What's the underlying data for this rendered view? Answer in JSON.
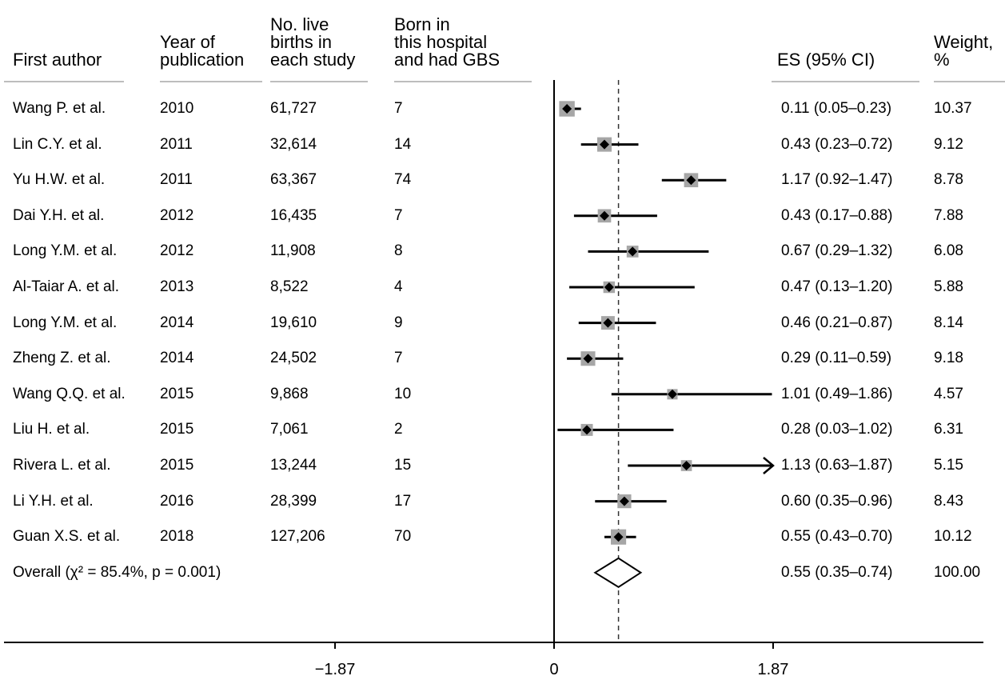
{
  "chart_data": {
    "type": "forest",
    "columns": {
      "author": "First author",
      "year": "Year of\npublication",
      "births": "No. live\nbirths in\neach study",
      "gbs": "Born in\nthis hospital\nand had GBS",
      "es": "ES (95% CI)",
      "weight": "Weight,\n%"
    },
    "studies": [
      {
        "author": "Wang P. et al.",
        "year": "2010",
        "births": "61,727",
        "gbs": "7",
        "es": 0.11,
        "lo": 0.05,
        "hi": 0.23,
        "es_text": "0.11 (0.05–0.23)",
        "weight": "10.37"
      },
      {
        "author": "Lin C.Y. et al.",
        "year": "2011",
        "births": "32,614",
        "gbs": "14",
        "es": 0.43,
        "lo": 0.23,
        "hi": 0.72,
        "es_text": "0.43 (0.23–0.72)",
        "weight": "9.12"
      },
      {
        "author": "Yu H.W. et al.",
        "year": "2011",
        "births": "63,367",
        "gbs": "74",
        "es": 1.17,
        "lo": 0.92,
        "hi": 1.47,
        "es_text": "1.17 (0.92–1.47)",
        "weight": "8.78"
      },
      {
        "author": "Dai Y.H. et al.",
        "year": "2012",
        "births": "16,435",
        "gbs": "7",
        "es": 0.43,
        "lo": 0.17,
        "hi": 0.88,
        "es_text": "0.43 (0.17–0.88)",
        "weight": "7.88"
      },
      {
        "author": "Long Y.M. et al.",
        "year": "2012",
        "births": "11,908",
        "gbs": "8",
        "es": 0.67,
        "lo": 0.29,
        "hi": 1.32,
        "es_text": "0.67 (0.29–1.32)",
        "weight": "6.08"
      },
      {
        "author": "Al-Taiar A. et al.",
        "year": "2013",
        "births": "8,522",
        "gbs": "4",
        "es": 0.47,
        "lo": 0.13,
        "hi": 1.2,
        "es_text": "0.47 (0.13–1.20)",
        "weight": "5.88"
      },
      {
        "author": "Long Y.M. et al.",
        "year": "2014",
        "births": "19,610",
        "gbs": "9",
        "es": 0.46,
        "lo": 0.21,
        "hi": 0.87,
        "es_text": "0.46 (0.21–0.87)",
        "weight": "8.14"
      },
      {
        "author": "Zheng Z. et al.",
        "year": "2014",
        "births": "24,502",
        "gbs": "7",
        "es": 0.29,
        "lo": 0.11,
        "hi": 0.59,
        "es_text": "0.29 (0.11–0.59)",
        "weight": "9.18"
      },
      {
        "author": "Wang Q.Q. et al.",
        "year": "2015",
        "births": "9,868",
        "gbs": "10",
        "es": 1.01,
        "lo": 0.49,
        "hi": 1.86,
        "es_text": "1.01 (0.49–1.86)",
        "weight": "4.57"
      },
      {
        "author": "Liu H. et al.",
        "year": "2015",
        "births": "7,061",
        "gbs": "2",
        "es": 0.28,
        "lo": 0.03,
        "hi": 1.02,
        "es_text": "0.28 (0.03–1.02)",
        "weight": "6.31"
      },
      {
        "author": "Rivera L. et al.",
        "year": "2015",
        "births": "13,244",
        "gbs": "15",
        "es": 1.13,
        "lo": 0.63,
        "hi": 1.87,
        "es_text": "1.13 (0.63–1.87)",
        "weight": "5.15"
      },
      {
        "author": "Li Y.H. et al.",
        "year": "2016",
        "births": "28,399",
        "gbs": "17",
        "es": 0.6,
        "lo": 0.35,
        "hi": 0.96,
        "es_text": "0.60 (0.35–0.96)",
        "weight": "8.43"
      },
      {
        "author": "Guan X.S. et al.",
        "year": "2018",
        "births": "127,206",
        "gbs": "70",
        "es": 0.55,
        "lo": 0.43,
        "hi": 0.7,
        "es_text": "0.55 (0.43–0.70)",
        "weight": "10.12"
      }
    ],
    "overall": {
      "label": "Overall (χ² = 85.4%, p = 0.001)",
      "es": 0.55,
      "lo": 0.35,
      "hi": 0.74,
      "es_text": "0.55 (0.35–0.74)",
      "weight": "100.00"
    },
    "x_ticks": [
      {
        "value": -1.87,
        "label": "−1.87"
      },
      {
        "value": 0,
        "label": "0"
      },
      {
        "value": 1.87,
        "label": "1.87"
      }
    ],
    "xlim": [
      -4.7,
      3.65
    ],
    "null_line": 0,
    "overall_line": 0.55,
    "colors": {
      "box": "#a6a6a6",
      "line": "#000000",
      "text": "#000000"
    }
  }
}
